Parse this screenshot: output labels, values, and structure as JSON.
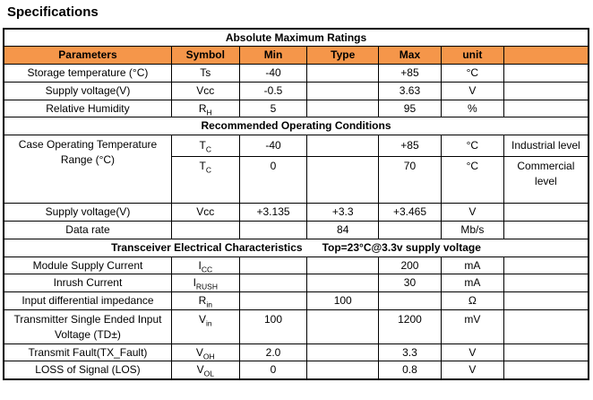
{
  "page": {
    "title": "Specifications"
  },
  "colors": {
    "header_bg": "#F5964A",
    "border": "#000000",
    "text": "#000000",
    "bg": "#FFFFFF"
  },
  "table": {
    "col_widths_pct": [
      28.7,
      11.6,
      11.6,
      12.2,
      10.7,
      10.7,
      14.5
    ],
    "rows": [
      {
        "kind": "section",
        "labels": [
          "Absolute Maximum Ratings"
        ]
      },
      {
        "kind": "header",
        "cells": [
          "Parameters",
          "Symbol",
          "Min",
          "Type",
          "Max",
          "unit",
          ""
        ]
      },
      {
        "kind": "data",
        "cells": [
          {
            "t": "Storage temperature (°C)",
            "cls": "cell-param"
          },
          {
            "t": "Ts"
          },
          {
            "t": "-40"
          },
          {
            "t": ""
          },
          {
            "t": "+85"
          },
          {
            "t": "°C"
          },
          {
            "t": ""
          }
        ]
      },
      {
        "kind": "data",
        "cells": [
          {
            "t": "Supply voltage(V)",
            "cls": "cell-param"
          },
          {
            "t": "Vcc"
          },
          {
            "t": "-0.5"
          },
          {
            "t": ""
          },
          {
            "t": "3.63"
          },
          {
            "t": "V"
          },
          {
            "t": ""
          }
        ]
      },
      {
        "kind": "data",
        "cells": [
          {
            "t": "Relative Humidity",
            "cls": "cell-param"
          },
          {
            "t": "R",
            "sub": "H"
          },
          {
            "t": "5"
          },
          {
            "t": ""
          },
          {
            "t": "95"
          },
          {
            "t": "%"
          },
          {
            "t": ""
          }
        ]
      },
      {
        "kind": "section",
        "labels": [
          "Recommended Operating Conditions"
        ]
      },
      {
        "kind": "data",
        "cls": "row-med",
        "cells": [
          {
            "t": "Case Operating Temperature Range (°C)",
            "cls": "cell-param cell-top",
            "rowspan": 2
          },
          {
            "t": "T",
            "sub": "C"
          },
          {
            "t": "-40"
          },
          {
            "t": ""
          },
          {
            "t": "+85"
          },
          {
            "t": "°C"
          },
          {
            "t": "Industrial level",
            "cls": "cell-note"
          }
        ]
      },
      {
        "kind": "data",
        "cls": "row-tall row-top",
        "cells": [
          {
            "t": "T",
            "sub": "C"
          },
          {
            "t": "0"
          },
          {
            "t": ""
          },
          {
            "t": "70"
          },
          {
            "t": "°C"
          },
          {
            "t": "Commercial level",
            "cls": "cell-note"
          }
        ]
      },
      {
        "kind": "data",
        "cells": [
          {
            "t": "Supply voltage(V)",
            "cls": "cell-param"
          },
          {
            "t": "Vcc"
          },
          {
            "t": "+3.135"
          },
          {
            "t": "+3.3"
          },
          {
            "t": "+3.465"
          },
          {
            "t": "V"
          },
          {
            "t": ""
          }
        ]
      },
      {
        "kind": "data",
        "cells": [
          {
            "t": "Data rate",
            "cls": "cell-param"
          },
          {
            "t": ""
          },
          {
            "t": ""
          },
          {
            "t": "84"
          },
          {
            "t": ""
          },
          {
            "t": "Mb/s"
          },
          {
            "t": ""
          }
        ]
      },
      {
        "kind": "section",
        "labels": [
          "Transceiver Electrical Characteristics",
          "Top=23°C@3.3v supply voltage"
        ]
      },
      {
        "kind": "data",
        "cells": [
          {
            "t": "Module Supply Current",
            "cls": "cell-param"
          },
          {
            "t": "I",
            "sub": "CC"
          },
          {
            "t": ""
          },
          {
            "t": ""
          },
          {
            "t": "200"
          },
          {
            "t": "mA"
          },
          {
            "t": ""
          }
        ]
      },
      {
        "kind": "data",
        "cells": [
          {
            "t": "Inrush Current",
            "cls": "cell-param"
          },
          {
            "t": "I",
            "sub": "RUSH"
          },
          {
            "t": ""
          },
          {
            "t": ""
          },
          {
            "t": "30"
          },
          {
            "t": "mA"
          },
          {
            "t": ""
          }
        ]
      },
      {
        "kind": "data",
        "cells": [
          {
            "t": "Input differential impedance",
            "cls": "cell-param"
          },
          {
            "t": "R",
            "sub": "in"
          },
          {
            "t": ""
          },
          {
            "t": "100"
          },
          {
            "t": ""
          },
          {
            "t": "Ω"
          },
          {
            "t": ""
          }
        ]
      },
      {
        "kind": "data",
        "cls": "row-two row-top",
        "cells": [
          {
            "t": "Transmitter Single Ended Input Voltage (TD±)",
            "cls": "cell-param"
          },
          {
            "t": "V",
            "sub": "in"
          },
          {
            "t": "100"
          },
          {
            "t": ""
          },
          {
            "t": "1200"
          },
          {
            "t": "mV"
          },
          {
            "t": ""
          }
        ]
      },
      {
        "kind": "data",
        "cells": [
          {
            "t": "Transmit Fault(TX_Fault)",
            "cls": "cell-param"
          },
          {
            "t": "V",
            "sub": "OH"
          },
          {
            "t": "2.0"
          },
          {
            "t": ""
          },
          {
            "t": "3.3"
          },
          {
            "t": "V"
          },
          {
            "t": ""
          }
        ]
      },
      {
        "kind": "data",
        "cells": [
          {
            "t": "LOSS of Signal (LOS)",
            "cls": "cell-param"
          },
          {
            "t": "V",
            "sub": "OL"
          },
          {
            "t": "0"
          },
          {
            "t": ""
          },
          {
            "t": "0.8"
          },
          {
            "t": "V"
          },
          {
            "t": ""
          }
        ]
      }
    ]
  }
}
